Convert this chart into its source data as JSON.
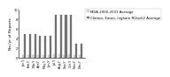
{
  "categories": [
    "Jan-Y",
    "Feb-Y",
    "Mar-Y",
    "Apr-Y",
    "May-Y",
    "Jun-Y",
    "Jul-Y",
    "Aug-Y",
    "Sep-Y",
    "Oct-Y",
    "Nov-Y",
    "Dec-Y"
  ],
  "series1_label": "MDA 2000-2001 Average",
  "series1_color": "#dddddd",
  "series1_values": [
    0.5,
    0.5,
    0.5,
    0.5,
    0.5,
    0.5,
    0.8,
    0.8,
    0.5,
    0.8,
    0.5,
    0.5
  ],
  "series2_label": "Clinton, Eaton, Ingham RUsick2 Average",
  "series2_color": "#777777",
  "series2_values": [
    5.0,
    5.0,
    5.0,
    4.5,
    4.5,
    4.5,
    9.0,
    9.0,
    9.0,
    9.0,
    3.0,
    3.0
  ],
  "ylabel": "No./yr of Reports",
  "ylim": [
    0,
    10
  ],
  "yticks": [
    0,
    2,
    4,
    6,
    8,
    10
  ],
  "background_color": "#ffffff",
  "legend_fontsize": 2.8,
  "tick_fontsize": 2.5,
  "ylabel_fontsize": 3.2,
  "bar_width": 0.36
}
